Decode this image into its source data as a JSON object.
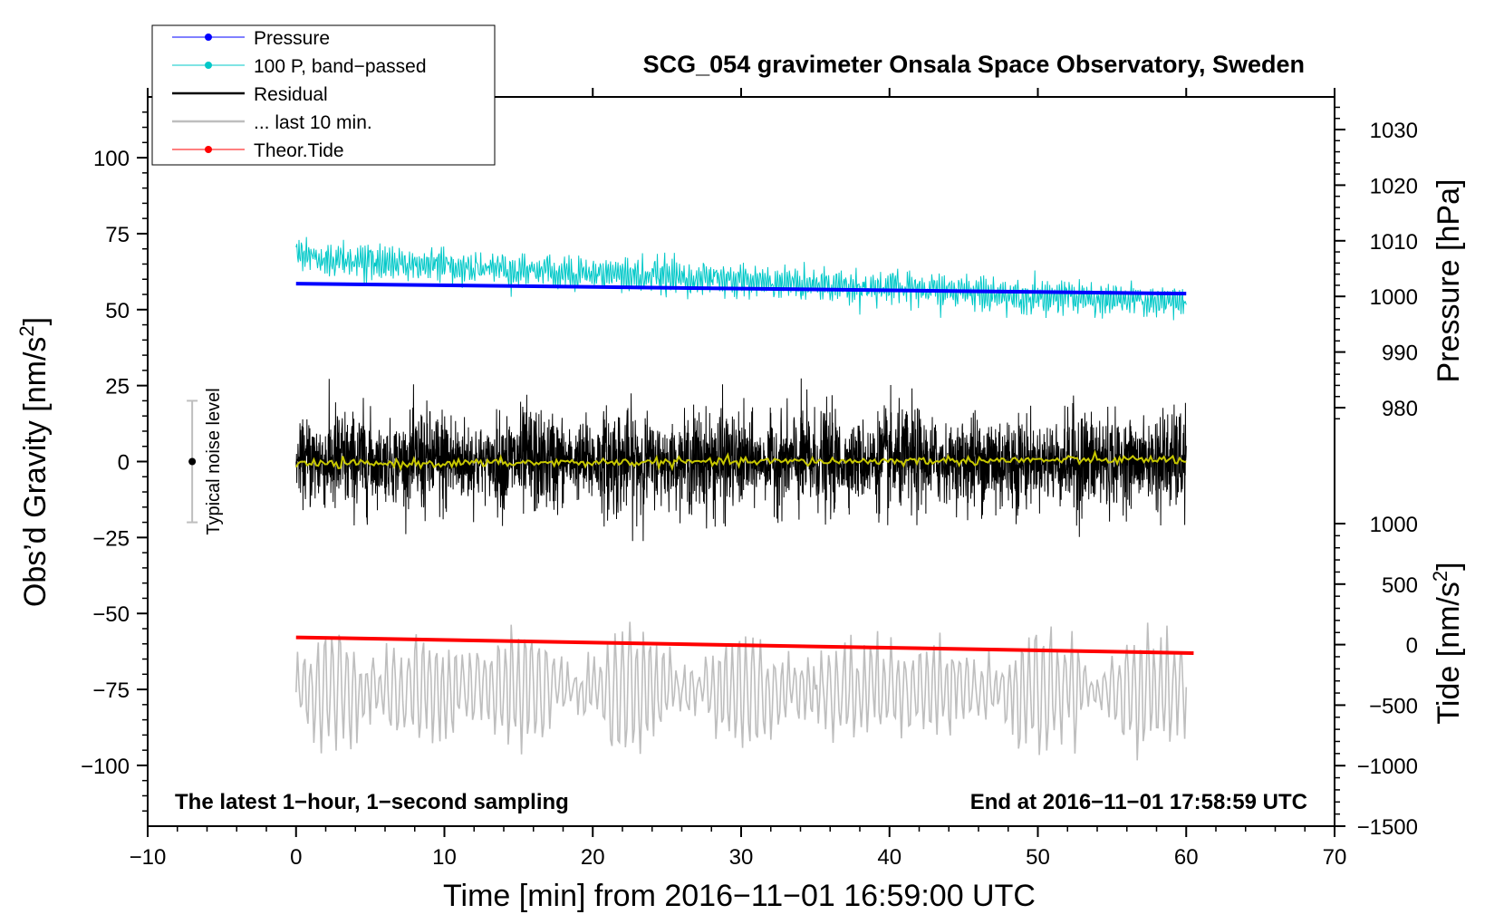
{
  "chart_data": {
    "type": "line",
    "title": "SCG_054 gravimeter Onsala Space Observatory, Sweden",
    "xlabel": "Time [min] from 2016−11−01 16:59:00 UTC",
    "ylabel_left": "Obs’d Gravity [nm/s²]",
    "ylabel_left_main": "Obs’d Gravity [nm/s",
    "ylabel_right_top": "Pressure [hPa]",
    "ylabel_right_bottom": "Tide [nm/s²]",
    "ylabel_right_bottom_main": "Tide [nm/s",
    "units_superscript": "2",
    "units_close": "]",
    "note_left": "The latest 1−hour, 1−second sampling",
    "note_right": "End at 2016−11−01 17:58:59 UTC",
    "noise_label": "Typical noise level",
    "xlim": [
      -10,
      70
    ],
    "ylim_left": [
      -120,
      120
    ],
    "x_ticks": [
      -10,
      0,
      10,
      20,
      30,
      40,
      50,
      60,
      70
    ],
    "x_tick_labels": [
      "−10",
      "0",
      "10",
      "20",
      "30",
      "40",
      "50",
      "60",
      "70"
    ],
    "y_left_ticks": [
      100,
      75,
      50,
      25,
      0,
      -25,
      -50,
      -75,
      -100
    ],
    "y_left_tick_labels": [
      "100",
      "75",
      "50",
      "25",
      "0",
      "−25",
      "−50",
      "−75",
      "−100"
    ],
    "y_right_pressure_ticks": [
      1030,
      1020,
      1010,
      1000,
      990,
      980
    ],
    "y_right_pressure_tick_labels": [
      "1030",
      "1020",
      "1010",
      "1000",
      "990",
      "980"
    ],
    "y_right_tide_ticks": [
      1000,
      500,
      0,
      -500,
      -1000,
      -1500
    ],
    "y_right_tide_tick_labels": [
      "1000",
      "500",
      "0",
      "−500",
      "−1000",
      "−1500"
    ],
    "legend": [
      {
        "label": "Pressure",
        "color": "#0000ff",
        "marker": true
      },
      {
        "label": "100 P, band−passed",
        "color": "#00c8c8",
        "marker": true
      },
      {
        "label": "Residual",
        "color": "#000000",
        "marker": false
      },
      {
        "label": "... last 10 min.",
        "color": "#bebebe",
        "marker": false
      },
      {
        "label": "Theor.Tide",
        "color": "#ff0000",
        "marker": true
      }
    ],
    "series": [
      {
        "name": "Pressure",
        "color": "#0000ff",
        "axis": "pressure",
        "x_range": [
          0,
          60
        ],
        "y_start": 1002.3,
        "y_end": 1000.5
      },
      {
        "name": "100 P, band−passed",
        "color": "#00c8c8",
        "axis": "gravity",
        "x_range": [
          0,
          60
        ],
        "y_start": 67,
        "y_end": 52,
        "amplitude": 4
      },
      {
        "name": "Residual",
        "color": "#000000",
        "axis": "gravity",
        "x_range": [
          0,
          60
        ],
        "y_center": 0,
        "amplitude": 10
      },
      {
        "name": "Residual smoothed",
        "color": "#c8c800",
        "axis": "gravity",
        "x_range": [
          0,
          60
        ],
        "y_center": 0
      },
      {
        "name": "... last 10 min.",
        "color": "#bebebe",
        "axis": "gravity",
        "x_range": [
          0,
          60
        ],
        "y_center": -75,
        "amplitude": 15
      },
      {
        "name": "Theor.Tide",
        "color": "#ff0000",
        "axis": "tide",
        "x_range": [
          0,
          60.5
        ],
        "y_start": 60,
        "y_end": -70
      }
    ],
    "noise_bar": {
      "x": -7,
      "y_center": 0,
      "y_low": -20,
      "y_high": 20
    }
  }
}
